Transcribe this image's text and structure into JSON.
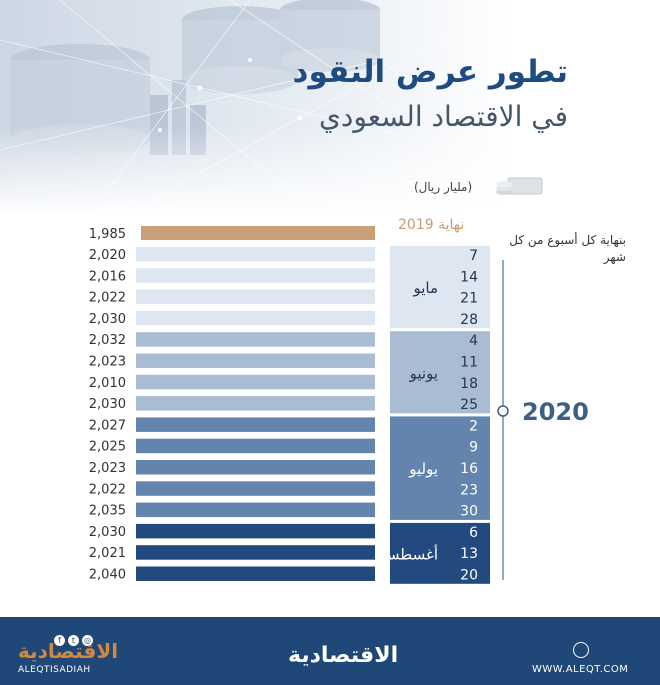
{
  "title": {
    "line1": "تطور عرض النقود",
    "line2": "في الاقتصاد السعودي"
  },
  "unit_label": "(مليار ريال)",
  "weekly_note": "بنهاية كل أسبوع من كل شهر",
  "year": "2020",
  "colors": {
    "year_end_bar": "#c9a077",
    "may": "#dde6f1",
    "june": "#a9bcd3",
    "july": "#6384ad",
    "august": "#224a7e"
  },
  "chart_data": {
    "type": "bar",
    "orientation": "horizontal",
    "year_end": {
      "label": "نهاية 2019",
      "value": 1985,
      "display": "1,985"
    },
    "groups": [
      {
        "month": "مايو",
        "color_key": "may",
        "days": [
          "7",
          "14",
          "21",
          "28"
        ],
        "values": [
          2020,
          2016,
          2022,
          2030
        ],
        "display": [
          "2,020",
          "2,016",
          "2,022",
          "2,030"
        ]
      },
      {
        "month": "يونيو",
        "color_key": "june",
        "days": [
          "4",
          "11",
          "18",
          "25"
        ],
        "values": [
          2032,
          2023,
          2010,
          2030
        ],
        "display": [
          "2,032",
          "2,023",
          "2,010",
          "2,030"
        ]
      },
      {
        "month": "يوليو",
        "color_key": "july",
        "days": [
          "2",
          "9",
          "16",
          "23",
          "30"
        ],
        "values": [
          2027,
          2025,
          2023,
          2022,
          2035
        ],
        "display": [
          "2,027",
          "2,025",
          "2,023",
          "2,022",
          "2,035"
        ]
      },
      {
        "month": "أغسطس",
        "color_key": "august",
        "days": [
          "6",
          "13",
          "20"
        ],
        "values": [
          2030,
          2021,
          2040
        ],
        "display": [
          "2,030",
          "2,021",
          "2,040"
        ]
      }
    ]
  },
  "footer": {
    "logo_left": "الاقتصادية",
    "handle": "ALEQTISADIAH",
    "logo_center": "الاقتصادية",
    "website": "WWW.ALEQT.COM"
  }
}
